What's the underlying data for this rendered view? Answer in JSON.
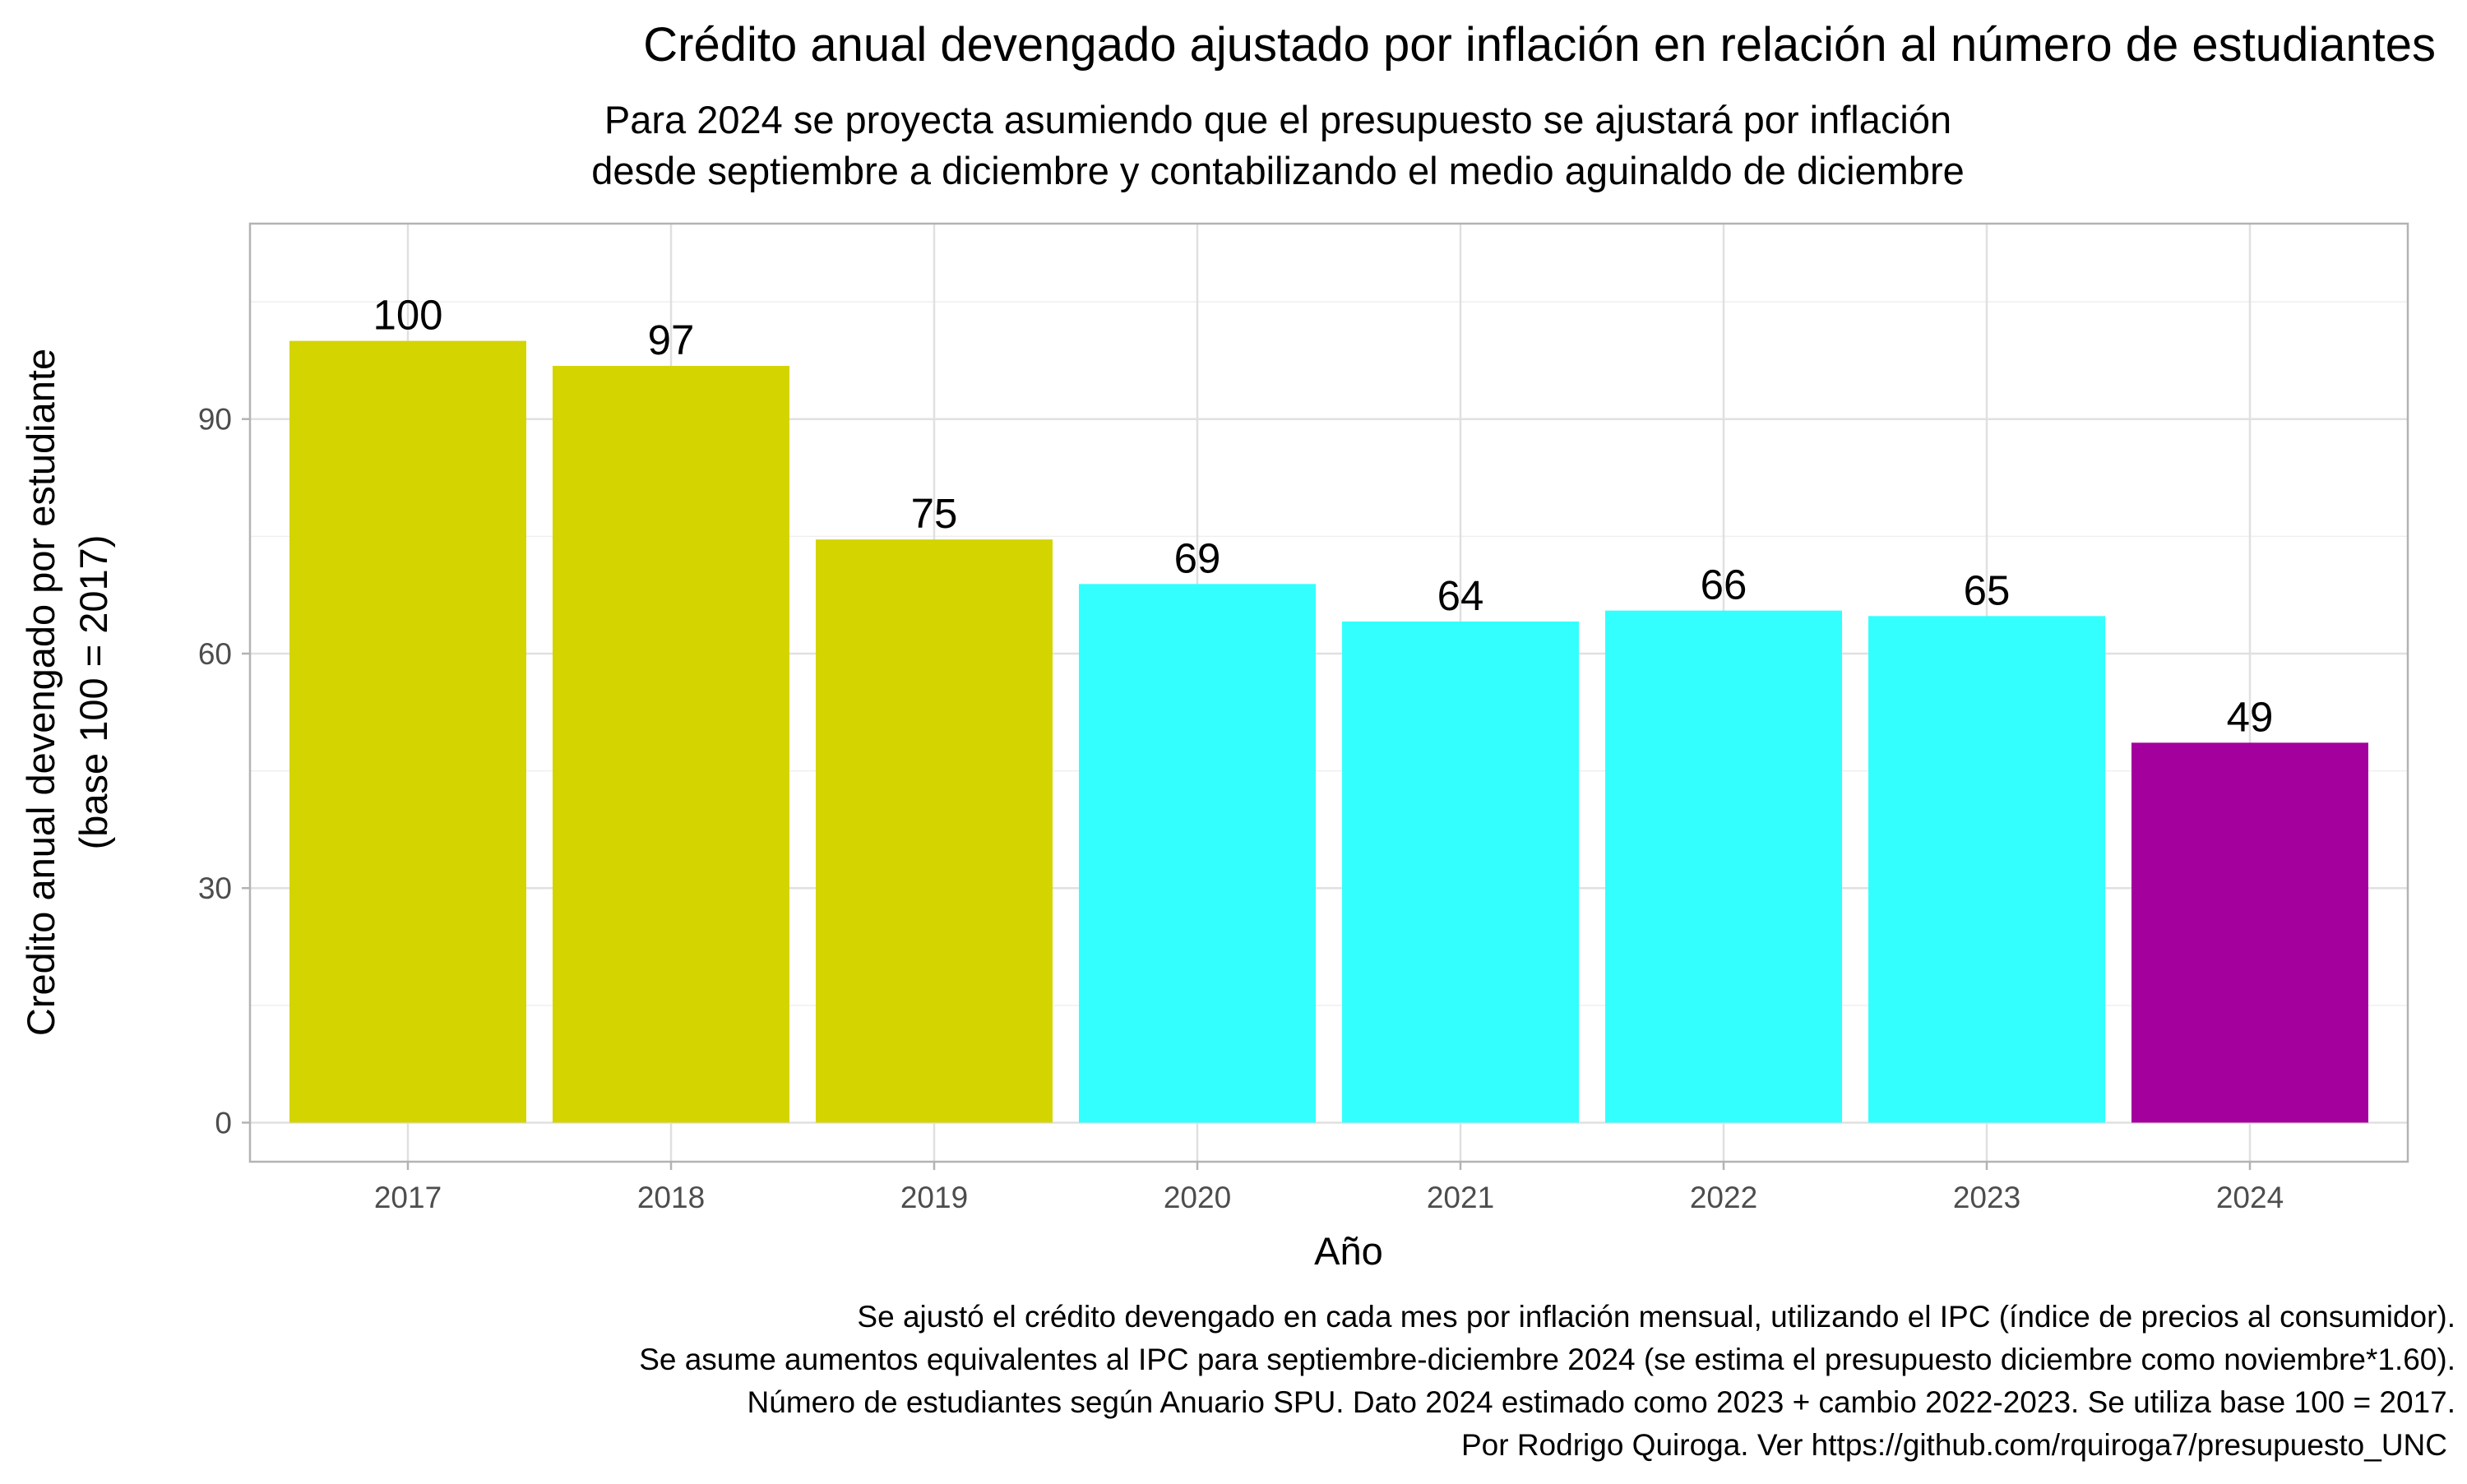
{
  "chart_data": {
    "type": "bar",
    "title": "Crédito anual devengado ajustado por inflación en relación al número de estudiantes",
    "subtitle": [
      "Para 2024 se proyecta asumiendo que el presupuesto se ajustará por inflación",
      "desde septiembre a diciembre y contabilizando el medio aguinaldo de diciembre"
    ],
    "xlabel": "Año",
    "ylabel": [
      "Credito anual devengado por estudiante",
      "(base 100 = 2017)"
    ],
    "categories": [
      "2017",
      "2018",
      "2019",
      "2020",
      "2021",
      "2022",
      "2023",
      "2024"
    ],
    "values": [
      100,
      96.8,
      74.6,
      68.9,
      64.1,
      65.5,
      64.8,
      48.6
    ],
    "data_labels": [
      "100",
      "97",
      "75",
      "69",
      "64",
      "66",
      "65",
      "49"
    ],
    "bar_colors": [
      "#d4d400",
      "#d4d400",
      "#d4d400",
      "#33ffff",
      "#33ffff",
      "#33ffff",
      "#33ffff",
      "#a3009d"
    ],
    "yticks": [
      0,
      30,
      60,
      90
    ],
    "ylim": [
      -5,
      115
    ],
    "grid": true,
    "legend": "none",
    "caption": [
      "Se ajustó el crédito devengado en cada mes por inflación mensual, utilizando el IPC (índice de precios al consumidor).",
      "Se asume aumentos equivalentes al IPC para septiembre-diciembre 2024 (se estima el presupuesto diciembre como noviembre*1.60).",
      "Número de estudiantes según Anuario SPU. Dato 2024 estimado como 2023 + cambio 2022-2023. Se utiliza base 100 = 2017.",
      "Por Rodrigo Quiroga. Ver https://github.com/rquiroga7/presupuesto_UNC"
    ],
    "colors": {
      "grid_major": "#e0e0e0",
      "grid_minor": "#efefef",
      "panel_border": "#b3b3b3",
      "tick_text": "#4d4d4d"
    }
  }
}
